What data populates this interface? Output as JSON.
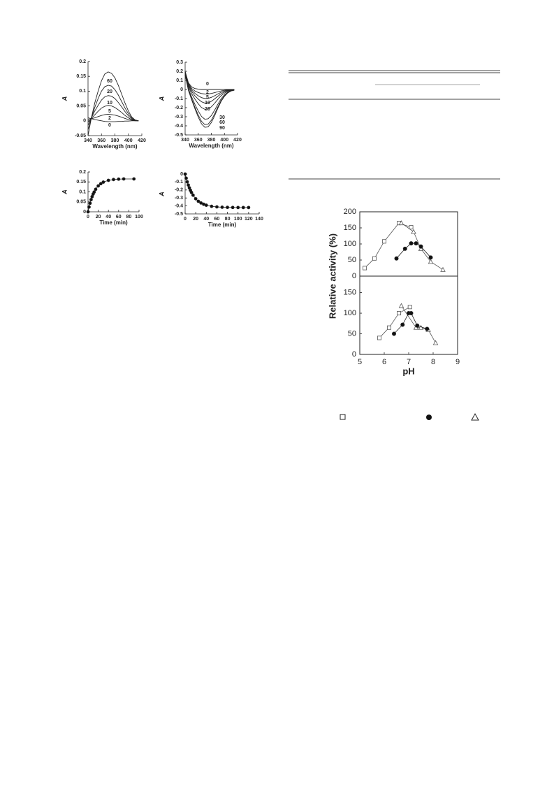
{
  "chart_data": [
    {
      "type": "line",
      "x_label": "Wavelength (nm)",
      "y_label": "A",
      "x": [
        340,
        345,
        350,
        355,
        360,
        365,
        370,
        375,
        380,
        385,
        390,
        395,
        400,
        405,
        410,
        415
      ],
      "xlim": [
        340,
        420
      ],
      "xticks": [
        340,
        360,
        380,
        400,
        420
      ],
      "ylim": [
        -0.05,
        0.2
      ],
      "yticks": [
        -0.05,
        0,
        0.05,
        0.1,
        0.15,
        0.2
      ],
      "series": [
        {
          "name": "60",
          "color": "#222",
          "values": [
            -0.05,
            0.01,
            0.06,
            0.1,
            0.135,
            0.158,
            0.165,
            0.16,
            0.145,
            0.12,
            0.09,
            0.06,
            0.033,
            0.013,
            0.003,
            0
          ]
        },
        {
          "name": "20",
          "color": "#222",
          "values": [
            -0.03,
            0.01,
            0.045,
            0.075,
            0.1,
            0.115,
            0.12,
            0.117,
            0.105,
            0.087,
            0.065,
            0.043,
            0.024,
            0.01,
            0.002,
            0
          ]
        },
        {
          "name": "10",
          "color": "#222",
          "values": [
            -0.015,
            0.01,
            0.033,
            0.052,
            0.07,
            0.081,
            0.085,
            0.083,
            0.075,
            0.062,
            0.047,
            0.031,
            0.017,
            0.007,
            0.001,
            0
          ]
        },
        {
          "name": "5",
          "color": "#222",
          "values": [
            -0.005,
            0.008,
            0.02,
            0.032,
            0.043,
            0.049,
            0.052,
            0.05,
            0.045,
            0.037,
            0.028,
            0.018,
            0.01,
            0.004,
            0.001,
            0
          ]
        },
        {
          "name": "2",
          "color": "#222",
          "values": [
            0.005,
            0.007,
            0.01,
            0.014,
            0.018,
            0.021,
            0.022,
            0.021,
            0.019,
            0.016,
            0.012,
            0.008,
            0.004,
            0.002,
            0,
            0
          ]
        },
        {
          "name": "0",
          "color": "#222",
          "values": [
            0.01,
            0.007,
            0.004,
            0.002,
            0,
            -0.002,
            -0.003,
            -0.003,
            -0.003,
            -0.002,
            -0.002,
            -0.001,
            -0.001,
            0,
            0,
            0
          ]
        }
      ]
    },
    {
      "type": "line",
      "x_label": "Wavelength (nm)",
      "y_label": "A",
      "x": [
        340,
        345,
        350,
        355,
        360,
        365,
        370,
        375,
        380,
        385,
        390,
        395,
        400,
        405,
        410,
        415
      ],
      "xlim": [
        340,
        420
      ],
      "xticks": [
        340,
        360,
        380,
        400,
        420
      ],
      "ylim": [
        -0.5,
        0.3
      ],
      "yticks": [
        -0.5,
        -0.4,
        -0.3,
        -0.2,
        -0.1,
        0,
        0.1,
        0.2,
        0.3
      ],
      "series": [
        {
          "name": "0",
          "color": "#222",
          "values": [
            0.2,
            0.074,
            0.028,
            0.01,
            0.004,
            0,
            0,
            0,
            0,
            0,
            0,
            0,
            0,
            0,
            0,
            0
          ]
        },
        {
          "name": "2",
          "color": "#222",
          "values": [
            0.195,
            0.064,
            0.011,
            -0.017,
            -0.033,
            -0.045,
            -0.05,
            -0.049,
            -0.044,
            -0.035,
            -0.025,
            -0.016,
            -0.009,
            -0.005,
            -0.002,
            -0.001
          ]
        },
        {
          "name": "5",
          "color": "#222",
          "values": [
            0.19,
            0.054,
            -0.006,
            -0.043,
            -0.069,
            -0.09,
            -0.099,
            -0.098,
            -0.087,
            -0.069,
            -0.049,
            -0.031,
            -0.018,
            -0.009,
            -0.004,
            -0.002
          ]
        },
        {
          "name": "10",
          "color": "#222",
          "values": [
            0.185,
            0.044,
            -0.023,
            -0.07,
            -0.106,
            -0.135,
            -0.149,
            -0.147,
            -0.131,
            -0.104,
            -0.074,
            -0.047,
            -0.027,
            -0.014,
            -0.006,
            -0.003
          ]
        },
        {
          "name": "20",
          "color": "#222",
          "values": [
            0.178,
            0.03,
            -0.047,
            -0.107,
            -0.157,
            -0.198,
            -0.218,
            -0.216,
            -0.191,
            -0.152,
            -0.108,
            -0.068,
            -0.04,
            -0.02,
            -0.009,
            -0.004
          ]
        },
        {
          "name": "30",
          "color": "#222",
          "values": [
            0.167,
            0.008,
            -0.084,
            -0.165,
            -0.237,
            -0.297,
            -0.327,
            -0.323,
            -0.287,
            -0.228,
            -0.162,
            -0.102,
            -0.059,
            -0.03,
            -0.013,
            -0.007
          ]
        },
        {
          "name": "60",
          "color": "#222",
          "values": [
            0.161,
            -0.004,
            -0.105,
            -0.197,
            -0.281,
            -0.351,
            -0.386,
            -0.382,
            -0.339,
            -0.269,
            -0.191,
            -0.121,
            -0.07,
            -0.035,
            -0.016,
            -0.008
          ]
        },
        {
          "name": "90",
          "color": "#222",
          "values": [
            0.158,
            -0.01,
            -0.115,
            -0.213,
            -0.303,
            -0.378,
            -0.416,
            -0.412,
            -0.365,
            -0.29,
            -0.206,
            -0.13,
            -0.076,
            -0.038,
            -0.017,
            -0.008
          ]
        }
      ]
    },
    {
      "type": "line",
      "x_label": "Time (min)",
      "y_label": "A",
      "x": [
        0,
        2,
        4,
        6,
        8,
        10,
        12,
        15,
        20,
        25,
        30,
        40,
        50,
        60,
        70,
        90
      ],
      "xlim": [
        0,
        100
      ],
      "xticks": [
        0,
        20,
        40,
        60,
        80,
        100
      ],
      "ylim": [
        0,
        0.2
      ],
      "yticks": [
        0,
        0.05,
        0.1,
        0.15,
        0.2
      ],
      "series": [
        {
          "color": "#222",
          "marker": "circle",
          "values": [
            0,
            0.024,
            0.043,
            0.061,
            0.076,
            0.089,
            0.099,
            0.113,
            0.13,
            0.141,
            0.149,
            0.158,
            0.162,
            0.164,
            0.165,
            0.165
          ]
        }
      ]
    },
    {
      "type": "line",
      "x_label": "Time (min)",
      "y_label": "A",
      "x": [
        0,
        2,
        4,
        6,
        8,
        10,
        12,
        15,
        20,
        25,
        30,
        35,
        40,
        50,
        60,
        70,
        80,
        90,
        100,
        110,
        120
      ],
      "xlim": [
        0,
        140
      ],
      "xticks": [
        0,
        20,
        40,
        60,
        80,
        100,
        120,
        140
      ],
      "ylim": [
        -0.5,
        0
      ],
      "yticks": [
        -0.5,
        -0.4,
        -0.3,
        -0.2,
        -0.1,
        0
      ],
      "series": [
        {
          "color": "#222",
          "marker": "circle",
          "values": [
            0,
            -0.052,
            -0.098,
            -0.138,
            -0.173,
            -0.204,
            -0.231,
            -0.265,
            -0.31,
            -0.342,
            -0.363,
            -0.379,
            -0.391,
            -0.405,
            -0.412,
            -0.416,
            -0.418,
            -0.419,
            -0.42,
            -0.42,
            -0.42
          ]
        }
      ]
    },
    {
      "type": "line",
      "y_label": "Relative activity (%)",
      "xlim": [
        5,
        9
      ],
      "ylim": [
        0,
        200
      ],
      "yticks": [
        0,
        50,
        100,
        150,
        200
      ],
      "series": [
        {
          "color": "#555",
          "marker": "square",
          "x": [
            5.2,
            5.6,
            6,
            6.6,
            7.1
          ],
          "values": [
            25,
            55,
            108,
            165,
            152
          ]
        },
        {
          "color": "#555",
          "marker": "triangle",
          "x": [
            6.7,
            7.2,
            7.5,
            7.9,
            8.4
          ],
          "values": [
            165,
            138,
            85,
            45,
            20
          ]
        },
        {
          "color": "#222",
          "marker": "circle",
          "x": [
            6.5,
            6.85,
            7.1,
            7.3,
            7.5,
            7.9
          ],
          "values": [
            55,
            85,
            102,
            102,
            92,
            58
          ]
        }
      ]
    },
    {
      "type": "line",
      "x_label": "pH",
      "xlim": [
        5,
        9
      ],
      "xticks": [
        5,
        6,
        7,
        8,
        9
      ],
      "ylim": [
        0,
        190
      ],
      "yticks": [
        0,
        50,
        100,
        150
      ],
      "series": [
        {
          "color": "#555",
          "marker": "square",
          "x": [
            5.8,
            6.2,
            6.6,
            7.05
          ],
          "values": [
            40,
            65,
            100,
            115
          ]
        },
        {
          "color": "#555",
          "marker": "triangle",
          "x": [
            6.7,
            7.3,
            7.5,
            7.8,
            8.1
          ],
          "values": [
            118,
            65,
            65,
            60,
            28
          ]
        },
        {
          "color": "#222",
          "marker": "circle",
          "x": [
            6.4,
            6.75,
            7,
            7.1,
            7.35,
            7.75
          ],
          "values": [
            50,
            72,
            100,
            100,
            70,
            62
          ]
        }
      ]
    }
  ]
}
